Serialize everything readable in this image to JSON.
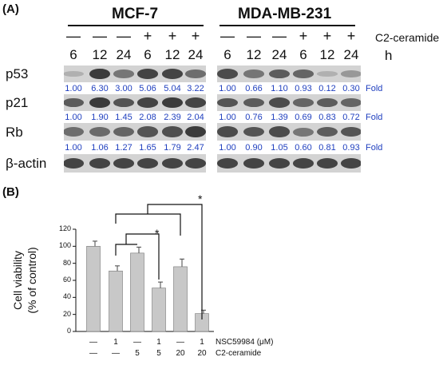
{
  "panel_a_label": "(A)",
  "panel_b_label": "(B)",
  "cell_lines": [
    "MCF-7",
    "MDA-MB-231"
  ],
  "treatment_label": "C2-ceramide",
  "time_label": "h",
  "treatment_signs": [
    "—",
    "—",
    "—",
    "+",
    "+",
    "+",
    "—",
    "—",
    "—",
    "+",
    "+",
    "+"
  ],
  "time_points": [
    "6",
    "12",
    "24",
    "6",
    "12",
    "24",
    "6",
    "12",
    "24",
    "6",
    "12",
    "24"
  ],
  "fold_label": "Fold",
  "blots": [
    {
      "protein": "p53",
      "fold": [
        "1.00",
        "6.30",
        "3.00",
        "5.06",
        "5.04",
        "3.22",
        "1.00",
        "0.66",
        "1.10",
        "0.93",
        "0.12",
        "0.30"
      ]
    },
    {
      "protein": "p21",
      "fold": [
        "1.00",
        "1.90",
        "1.45",
        "2.08",
        "2.39",
        "2.04",
        "1.00",
        "0.76",
        "1.39",
        "0.69",
        "0.83",
        "0.72"
      ]
    },
    {
      "protein": "Rb",
      "fold": [
        "1.00",
        "1.06",
        "1.27",
        "1.65",
        "1.79",
        "2.47",
        "1.00",
        "0.90",
        "1.05",
        "0.60",
        "0.81",
        "0.93"
      ]
    },
    {
      "protein": "β-actin",
      "fold": []
    }
  ],
  "chart_data": {
    "type": "bar",
    "ylabel_line1": "Cell viability",
    "ylabel_line2": "(% of control)",
    "ylim": [
      0,
      120
    ],
    "yticks": [
      "0",
      "20",
      "40",
      "60",
      "80",
      "100",
      "120"
    ],
    "values": [
      100,
      71,
      92,
      51,
      76,
      21
    ],
    "errors": [
      6,
      6,
      7,
      7,
      9,
      4
    ],
    "bar_color": "#c8c8c8",
    "significance_marks": [
      "*",
      "*"
    ],
    "table_rows": [
      {
        "label": "NSC59984 (μM)",
        "values": [
          "—",
          "1",
          "—",
          "1",
          "—",
          "1"
        ]
      },
      {
        "label": "C2-ceramide",
        "values": [
          "—",
          "—",
          "5",
          "5",
          "20",
          "20"
        ]
      }
    ]
  }
}
